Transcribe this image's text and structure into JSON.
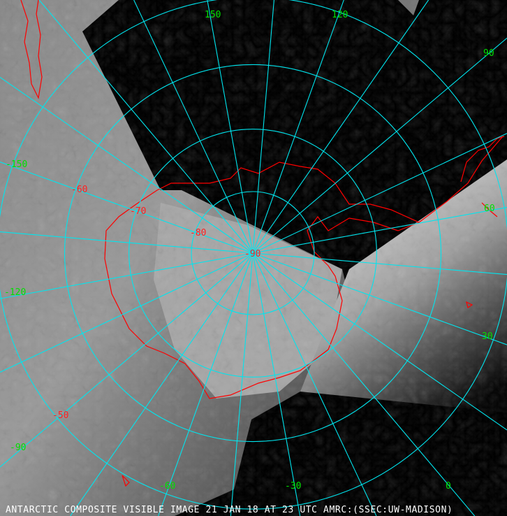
{
  "caption": "ANTARCTIC COMPOSITE VISIBLE IMAGE 21 JAN 18 AT 23 UTC AMRC:(SSEC:UW-MADISON)",
  "longitude_labels": [
    "150",
    "120",
    "90",
    "60",
    "30",
    "0",
    "-30",
    "-60",
    "-90",
    "-120",
    "-150"
  ],
  "latitude_labels": [
    "-50",
    "-60",
    "-70",
    "-80",
    "-90"
  ],
  "colors": {
    "grid": "#00e5ee",
    "longitude_label": "#00e000",
    "latitude_label": "#ff2020",
    "coastline": "#ff0000",
    "background": "#000000"
  }
}
